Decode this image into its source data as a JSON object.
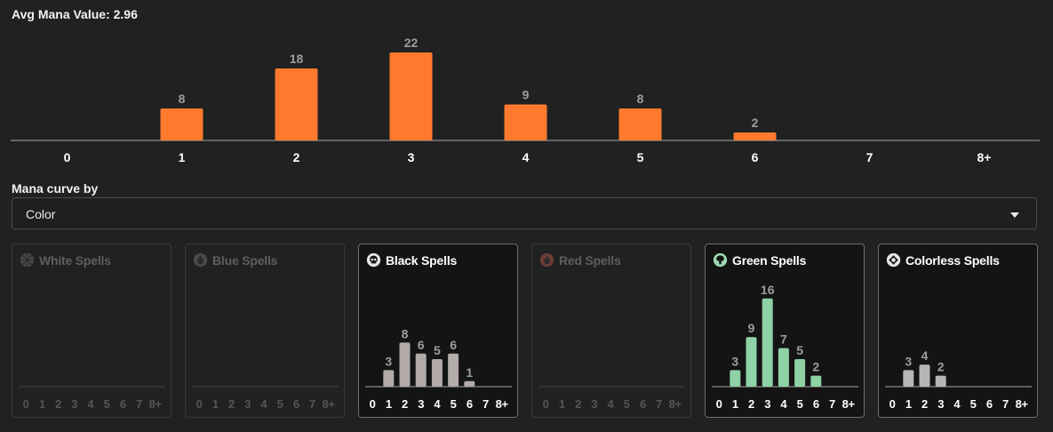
{
  "avg_mana_value": "Avg Mana Value: 2.96",
  "mana_curve_by_label": "Mana curve by",
  "group_select": {
    "value": "Color"
  },
  "colors": {
    "bar_main": "#ff7a2f",
    "axis": "#7a7a7a",
    "label_muted": "#9e9e9e",
    "black_bar": "#b2aba8",
    "green_bar": "#8ed2a6",
    "colorless_bar": "#b6b6b6"
  },
  "chart_data": [
    {
      "type": "bar",
      "title": "Avg Mana Value: 2.96",
      "categories": [
        "0",
        "1",
        "2",
        "3",
        "4",
        "5",
        "6",
        "7",
        "8+"
      ],
      "values": [
        0,
        8,
        18,
        22,
        9,
        8,
        2,
        0,
        0
      ],
      "xlabel": "",
      "ylabel": "",
      "ylim": [
        0,
        22
      ]
    },
    {
      "type": "bar",
      "title": "White Spells",
      "categories": [
        "0",
        "1",
        "2",
        "3",
        "4",
        "5",
        "6",
        "7",
        "8+"
      ],
      "values": [
        0,
        0,
        0,
        0,
        0,
        0,
        0,
        0,
        0
      ],
      "ylim": [
        0,
        16
      ]
    },
    {
      "type": "bar",
      "title": "Blue Spells",
      "categories": [
        "0",
        "1",
        "2",
        "3",
        "4",
        "5",
        "6",
        "7",
        "8+"
      ],
      "values": [
        0,
        0,
        0,
        0,
        0,
        0,
        0,
        0,
        0
      ],
      "ylim": [
        0,
        16
      ]
    },
    {
      "type": "bar",
      "title": "Black Spells",
      "categories": [
        "0",
        "1",
        "2",
        "3",
        "4",
        "5",
        "6",
        "7",
        "8+"
      ],
      "values": [
        0,
        3,
        8,
        6,
        5,
        6,
        1,
        0,
        0
      ],
      "ylim": [
        0,
        16
      ]
    },
    {
      "type": "bar",
      "title": "Red Spells",
      "categories": [
        "0",
        "1",
        "2",
        "3",
        "4",
        "5",
        "6",
        "7",
        "8+"
      ],
      "values": [
        0,
        0,
        0,
        0,
        0,
        0,
        0,
        0,
        0
      ],
      "ylim": [
        0,
        16
      ]
    },
    {
      "type": "bar",
      "title": "Green Spells",
      "categories": [
        "0",
        "1",
        "2",
        "3",
        "4",
        "5",
        "6",
        "7",
        "8+"
      ],
      "values": [
        0,
        3,
        9,
        16,
        7,
        5,
        2,
        0,
        0
      ],
      "ylim": [
        0,
        16
      ]
    },
    {
      "type": "bar",
      "title": "Colorless Spells",
      "categories": [
        "0",
        "1",
        "2",
        "3",
        "4",
        "5",
        "6",
        "7",
        "8+"
      ],
      "values": [
        0,
        3,
        4,
        2,
        0,
        0,
        0,
        0,
        0
      ],
      "ylim": [
        0,
        16
      ]
    }
  ],
  "panels": [
    {
      "key": "white",
      "title": "White Spells",
      "icon": "white-mana-icon",
      "active": false
    },
    {
      "key": "blue",
      "title": "Blue Spells",
      "icon": "blue-mana-icon",
      "active": false
    },
    {
      "key": "black",
      "title": "Black Spells",
      "icon": "black-mana-icon",
      "active": true
    },
    {
      "key": "red",
      "title": "Red Spells",
      "icon": "red-mana-icon",
      "active": false
    },
    {
      "key": "green",
      "title": "Green Spells",
      "icon": "green-mana-icon",
      "active": true
    },
    {
      "key": "colorless",
      "title": "Colorless Spells",
      "icon": "colorless-mana-icon",
      "active": true
    }
  ]
}
